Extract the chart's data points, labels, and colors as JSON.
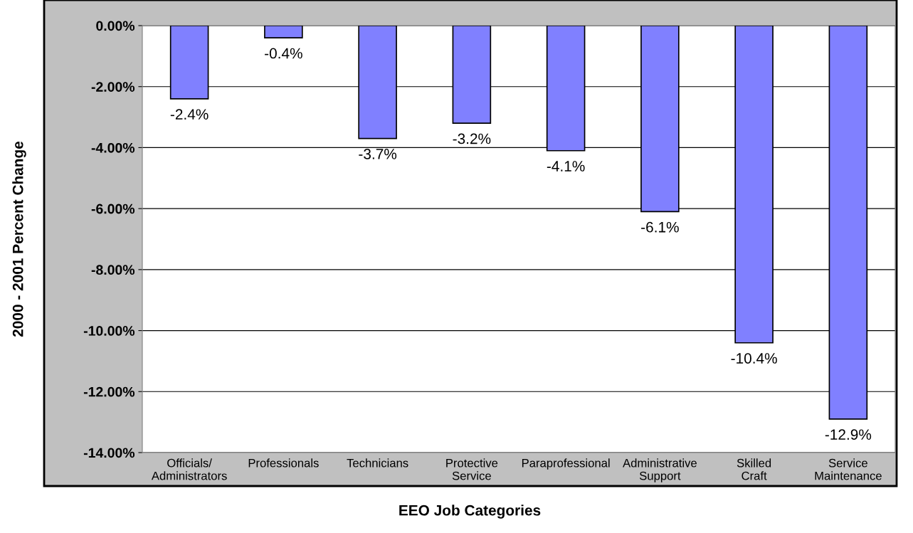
{
  "chart_data": {
    "type": "bar",
    "xlabel": "EEO Job Categories",
    "ylabel": "2000 - 2001 Percent Change",
    "categories": [
      "Officials/\nAdministrators",
      "Professionals",
      "Technicians",
      "Protective\nService",
      "Paraprofessional",
      "Administrative\nSupport",
      "Skilled\nCraft",
      "Service\nMaintenance"
    ],
    "values": [
      -2.4,
      -0.4,
      -3.7,
      -3.2,
      -4.1,
      -6.1,
      -10.4,
      -12.9
    ],
    "value_labels": [
      "-2.4%",
      "-0.4%",
      "-3.7%",
      "-3.2%",
      "-4.1%",
      "-6.1%",
      "-10.4%",
      "-12.9%"
    ],
    "color": "#8080ff",
    "ylim": [
      -14,
      0
    ],
    "yticks": [
      {
        "value": -14,
        "label": "-14.00%"
      },
      {
        "value": -12,
        "label": "-12.00%"
      },
      {
        "value": -10,
        "label": "-10.00%"
      },
      {
        "value": -8,
        "label": "-8.00%"
      },
      {
        "value": -6,
        "label": "-6.00%"
      },
      {
        "value": -4,
        "label": "-4.00%"
      },
      {
        "value": -2,
        "label": "-2.00%"
      },
      {
        "value": 0,
        "label": "0.00%"
      }
    ],
    "grid": "y"
  }
}
